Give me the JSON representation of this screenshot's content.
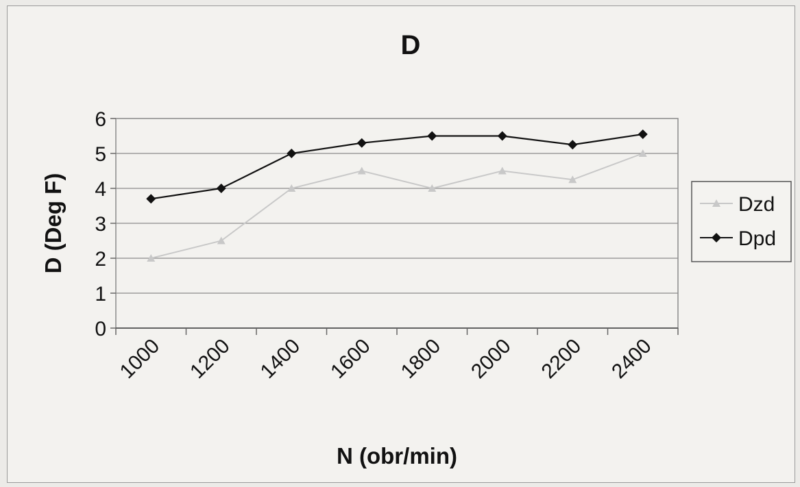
{
  "chart_data": {
    "type": "line",
    "title": "D",
    "xlabel": "N (obr/min)",
    "ylabel": "D (Deg F)",
    "x_tick_labels": [
      "1000",
      "1200",
      "1400",
      "1600",
      "1800",
      "2000",
      "2200",
      "2400"
    ],
    "ylim": [
      0,
      6
    ],
    "y_ticks": [
      0,
      1,
      2,
      3,
      4,
      5,
      6
    ],
    "grid": true,
    "legend_position": "right",
    "x": [
      1100,
      1300,
      1500,
      1700,
      1900,
      2100,
      2300,
      2500
    ],
    "series": [
      {
        "name": "Dzd",
        "values": [
          2.0,
          2.5,
          4.0,
          4.5,
          4.0,
          4.5,
          4.25,
          5.0
        ],
        "color": "#c8c8c8",
        "marker": "triangle"
      },
      {
        "name": "Dpd",
        "values": [
          3.7,
          4.0,
          5.0,
          5.3,
          5.5,
          5.5,
          5.25,
          5.55
        ],
        "color": "#111111",
        "marker": "diamond"
      }
    ]
  }
}
